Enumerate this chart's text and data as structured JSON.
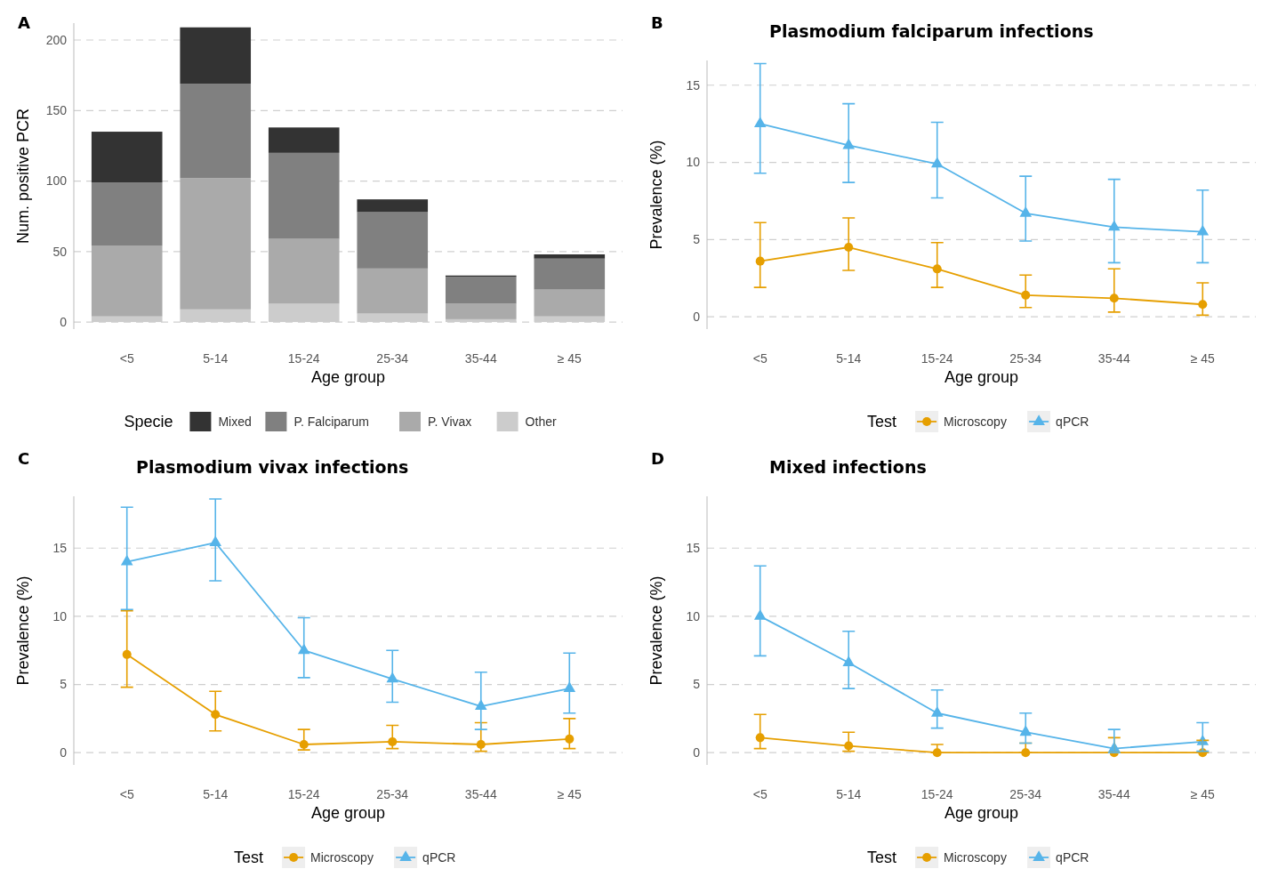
{
  "chart_data": [
    {
      "type": "bar",
      "stacked": true,
      "annotations": [
        "A"
      ],
      "xlabel": "Age group",
      "ylabel": "Num. positive PCR",
      "legend_title": "Specie",
      "legend": "bottom",
      "grid": "y",
      "categories": [
        "<5",
        "5-14",
        "15-24",
        "25-34",
        "35-44",
        "≥ 45"
      ],
      "ylim": [
        -5,
        212
      ],
      "yticks": [
        0,
        50,
        100,
        150,
        200
      ],
      "series": [
        {
          "name": "Other",
          "color": "#cccccc",
          "values": [
            4,
            9,
            13,
            6,
            2,
            4
          ]
        },
        {
          "name": "P. Vivax",
          "color": "#aaaaaa",
          "values": [
            50,
            93,
            46,
            32,
            11,
            19
          ]
        },
        {
          "name": "P. Falciparum",
          "color": "#808080",
          "values": [
            45,
            67,
            61,
            40,
            19,
            22
          ]
        },
        {
          "name": "Mixed",
          "color": "#333333",
          "values": [
            36,
            40,
            18,
            9,
            1,
            3
          ]
        }
      ]
    },
    {
      "type": "line",
      "title": "Plasmodium falciparum infections",
      "annotations": [
        "B"
      ],
      "xlabel": "Age group",
      "ylabel": "Prevalence (%)",
      "legend_title": "Test",
      "legend": "bottom",
      "grid": "y",
      "categories": [
        "<5",
        "5-14",
        "15-24",
        "25-34",
        "35-44",
        "≥ 45"
      ],
      "ylim": [
        -0.8,
        16.6
      ],
      "yticks": [
        0,
        5,
        10,
        15
      ],
      "series": [
        {
          "name": "Microscopy",
          "color": "#e69f00",
          "marker": "circle",
          "values": [
            3.6,
            4.5,
            3.1,
            1.4,
            1.2,
            0.8
          ],
          "errors": [
            [
              1.9,
              6.1
            ],
            [
              3.0,
              6.4
            ],
            [
              1.9,
              4.8
            ],
            [
              0.6,
              2.7
            ],
            [
              0.3,
              3.1
            ],
            [
              0.1,
              2.2
            ]
          ]
        },
        {
          "name": "qPCR",
          "color": "#56b4e9",
          "marker": "triangle",
          "values": [
            12.5,
            11.1,
            9.9,
            6.7,
            5.8,
            5.5
          ],
          "errors": [
            [
              9.3,
              16.4
            ],
            [
              8.7,
              13.8
            ],
            [
              7.7,
              12.6
            ],
            [
              4.9,
              9.1
            ],
            [
              3.5,
              8.9
            ],
            [
              3.5,
              8.2
            ]
          ]
        }
      ]
    },
    {
      "type": "line",
      "title": "Plasmodium vivax infections",
      "annotations": [
        "C"
      ],
      "xlabel": "Age group",
      "ylabel": "Prevalence (%)",
      "legend_title": "Test",
      "legend": "bottom",
      "grid": "y",
      "categories": [
        "<5",
        "5-14",
        "15-24",
        "25-34",
        "35-44",
        "≥ 45"
      ],
      "ylim": [
        -0.9,
        18.8
      ],
      "yticks": [
        0,
        5,
        10,
        15
      ],
      "series": [
        {
          "name": "Microscopy",
          "color": "#e69f00",
          "marker": "circle",
          "values": [
            7.2,
            2.8,
            0.6,
            0.8,
            0.6,
            1.0
          ],
          "errors": [
            [
              4.8,
              10.4
            ],
            [
              1.6,
              4.5
            ],
            [
              0.2,
              1.7
            ],
            [
              0.3,
              2.0
            ],
            [
              0.1,
              2.2
            ],
            [
              0.3,
              2.5
            ]
          ]
        },
        {
          "name": "qPCR",
          "color": "#56b4e9",
          "marker": "triangle",
          "values": [
            14.0,
            15.4,
            7.5,
            5.4,
            3.4,
            4.7
          ],
          "errors": [
            [
              10.5,
              18.0
            ],
            [
              12.6,
              18.6
            ],
            [
              5.5,
              9.9
            ],
            [
              3.7,
              7.5
            ],
            [
              1.7,
              5.9
            ],
            [
              2.9,
              7.3
            ]
          ]
        }
      ]
    },
    {
      "type": "line",
      "title": "Mixed infections",
      "annotations": [
        "D"
      ],
      "xlabel": "Age group",
      "ylabel": "Prevalence (%)",
      "legend_title": "Test",
      "legend": "bottom",
      "grid": "y",
      "categories": [
        "<5",
        "5-14",
        "15-24",
        "25-34",
        "35-44",
        "≥ 45"
      ],
      "ylim": [
        -0.9,
        18.8
      ],
      "yticks": [
        0,
        5,
        10,
        15
      ],
      "series": [
        {
          "name": "Microscopy",
          "color": "#e69f00",
          "marker": "circle",
          "values": [
            1.1,
            0.5,
            0,
            0,
            0,
            0
          ],
          "errors": [
            [
              0.3,
              2.8
            ],
            [
              0.1,
              1.5
            ],
            [
              0,
              0.6
            ],
            [
              0,
              0.7
            ],
            [
              0,
              1.1
            ],
            [
              0,
              0.9
            ]
          ]
        },
        {
          "name": "qPCR",
          "color": "#56b4e9",
          "marker": "triangle",
          "values": [
            10.0,
            6.6,
            2.9,
            1.5,
            0.3,
            0.8
          ],
          "errors": [
            [
              7.1,
              13.7
            ],
            [
              4.7,
              8.9
            ],
            [
              1.8,
              4.6
            ],
            [
              0.7,
              2.9
            ],
            [
              0,
              1.7
            ],
            [
              0.1,
              2.2
            ]
          ]
        }
      ]
    }
  ]
}
